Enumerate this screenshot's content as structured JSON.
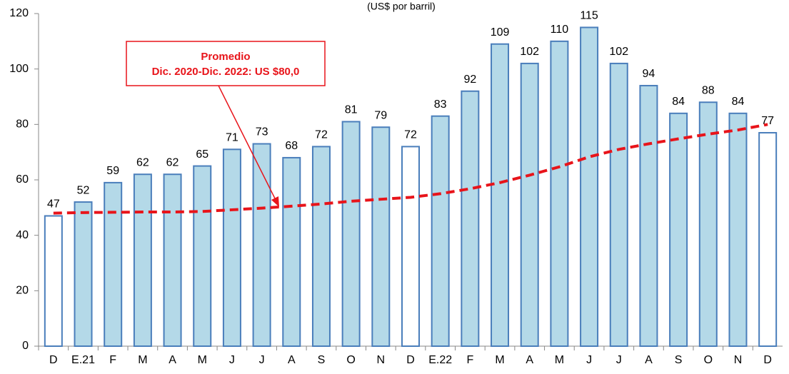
{
  "chart_data": {
    "type": "bar",
    "subtitle": "(US$ por barril)",
    "categories": [
      "D",
      "E.21",
      "F",
      "M",
      "A",
      "M",
      "J",
      "J",
      "A",
      "S",
      "O",
      "N",
      "D",
      "E.22",
      "F",
      "M",
      "A",
      "M",
      "J",
      "J",
      "A",
      "S",
      "O",
      "N",
      "D"
    ],
    "values": [
      47,
      52,
      59,
      62,
      62,
      65,
      71,
      73,
      68,
      72,
      81,
      79,
      72,
      83,
      92,
      109,
      102,
      110,
      115,
      102,
      94,
      84,
      88,
      84,
      77
    ],
    "bar_colors": [
      "#ffffff",
      "#b4d9e8",
      "#b4d9e8",
      "#b4d9e8",
      "#b4d9e8",
      "#b4d9e8",
      "#b4d9e8",
      "#b4d9e8",
      "#b4d9e8",
      "#b4d9e8",
      "#b4d9e8",
      "#b4d9e8",
      "#ffffff",
      "#b4d9e8",
      "#b4d9e8",
      "#b4d9e8",
      "#b4d9e8",
      "#b4d9e8",
      "#b4d9e8",
      "#b4d9e8",
      "#b4d9e8",
      "#b4d9e8",
      "#b4d9e8",
      "#b4d9e8",
      "#ffffff"
    ],
    "edge_color": "#4a7ebb",
    "trend": {
      "color": "#e8141a",
      "values": [
        48,
        48.2,
        48.3,
        48.4,
        48.4,
        48.6,
        49.2,
        49.8,
        50.5,
        51.3,
        52.3,
        53,
        53.7,
        55,
        56.8,
        59,
        61.7,
        64.7,
        68.3,
        71,
        73,
        74.8,
        76.5,
        78,
        80
      ]
    },
    "annotation": {
      "lines": [
        "Promedio",
        "Dic. 2020-Dic. 2022: US $80,0"
      ],
      "color": "#e8141a"
    },
    "ylim": [
      0,
      120
    ],
    "yticks": [
      0,
      20,
      40,
      60,
      80,
      100,
      120
    ]
  }
}
